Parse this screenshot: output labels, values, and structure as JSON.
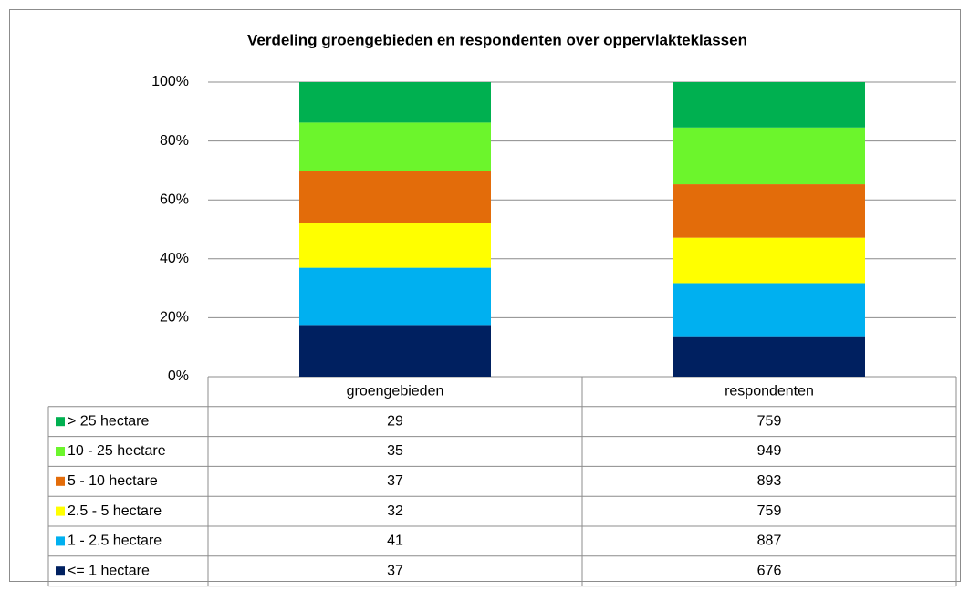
{
  "chart_data": {
    "type": "bar",
    "stacking": "percent",
    "title": "Verdeling groengebieden en respondenten over oppervlakteklassen",
    "categories": [
      "groengebieden",
      "respondenten"
    ],
    "series": [
      {
        "name": "> 25 hectare",
        "color": "#00b050",
        "values": [
          29,
          759
        ]
      },
      {
        "name": "10 - 25 hectare",
        "color": "#6cf52c",
        "values": [
          35,
          949
        ]
      },
      {
        "name": "5 - 10 hectare",
        "color": "#e36c0a",
        "values": [
          37,
          893
        ]
      },
      {
        "name": "2.5 - 5 hectare",
        "color": "#ffff00",
        "values": [
          32,
          759
        ]
      },
      {
        "name": "1 - 2.5 hectare",
        "color": "#00b0f0",
        "values": [
          41,
          887
        ]
      },
      {
        "name": "<= 1 hectare",
        "color": "#002060",
        "values": [
          37,
          676
        ]
      }
    ],
    "ylim": [
      0,
      100
    ],
    "yticks": [
      {
        "value": 0,
        "label": "0%"
      },
      {
        "value": 20,
        "label": "20%"
      },
      {
        "value": 40,
        "label": "40%"
      },
      {
        "value": 60,
        "label": "60%"
      },
      {
        "value": 80,
        "label": "80%"
      },
      {
        "value": 100,
        "label": "100%"
      }
    ],
    "grid": true
  }
}
